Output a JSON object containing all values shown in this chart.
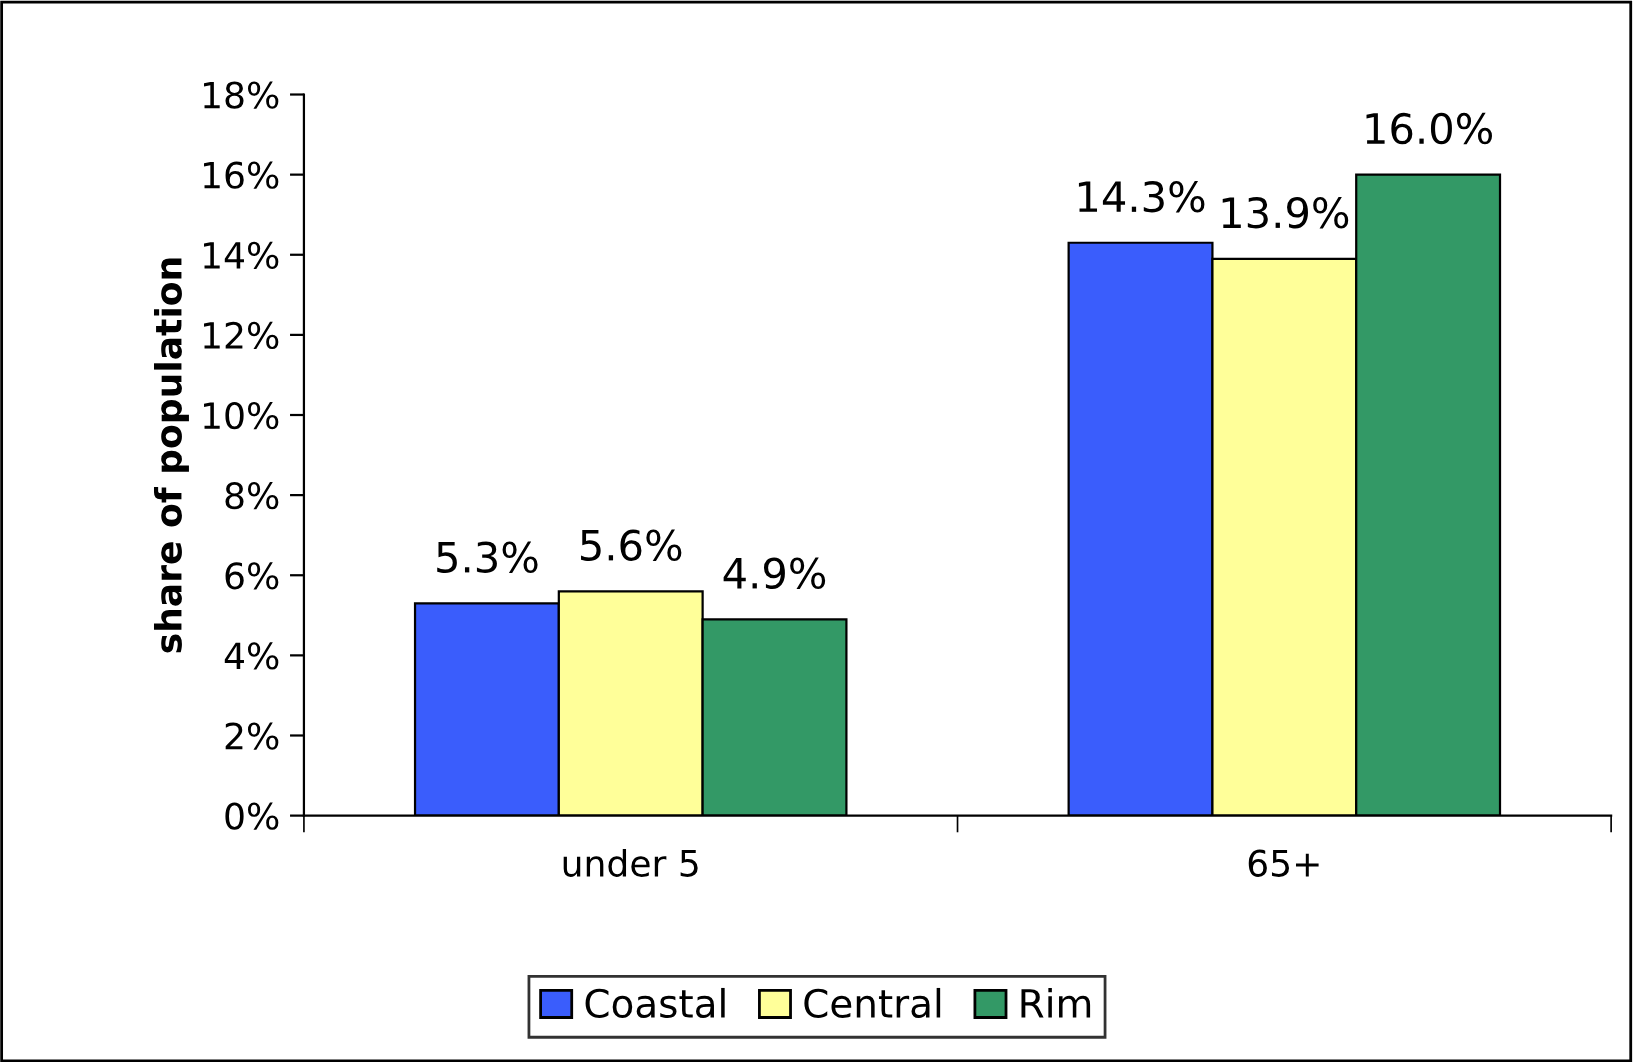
{
  "chart_data": {
    "type": "bar",
    "ylabel": "share of population",
    "categories": [
      "under 5",
      "65+"
    ],
    "series": [
      {
        "name": "Coastal",
        "color": "#3a5dfc",
        "values": [
          5.3,
          14.3
        ],
        "value_labels": [
          "5.3%",
          "14.3%"
        ]
      },
      {
        "name": "Central",
        "color": "#ffff99",
        "values": [
          5.6,
          13.9
        ],
        "value_labels": [
          "5.6%",
          "13.9%"
        ]
      },
      {
        "name": "Rim",
        "color": "#339966",
        "values": [
          4.9,
          16.0
        ],
        "value_labels": [
          "4.9%",
          "16.0%"
        ]
      }
    ],
    "ylim": [
      0,
      18
    ],
    "yticks": [
      {
        "value": 0,
        "label": "0%"
      },
      {
        "value": 2,
        "label": "2%"
      },
      {
        "value": 4,
        "label": "4%"
      },
      {
        "value": 6,
        "label": "6%"
      },
      {
        "value": 8,
        "label": "8%"
      },
      {
        "value": 10,
        "label": "10%"
      },
      {
        "value": 12,
        "label": "12%"
      },
      {
        "value": 14,
        "label": "14%"
      },
      {
        "value": 16,
        "label": "16%"
      },
      {
        "value": 18,
        "label": "18%"
      }
    ],
    "grid": false,
    "legend": "bottom"
  }
}
